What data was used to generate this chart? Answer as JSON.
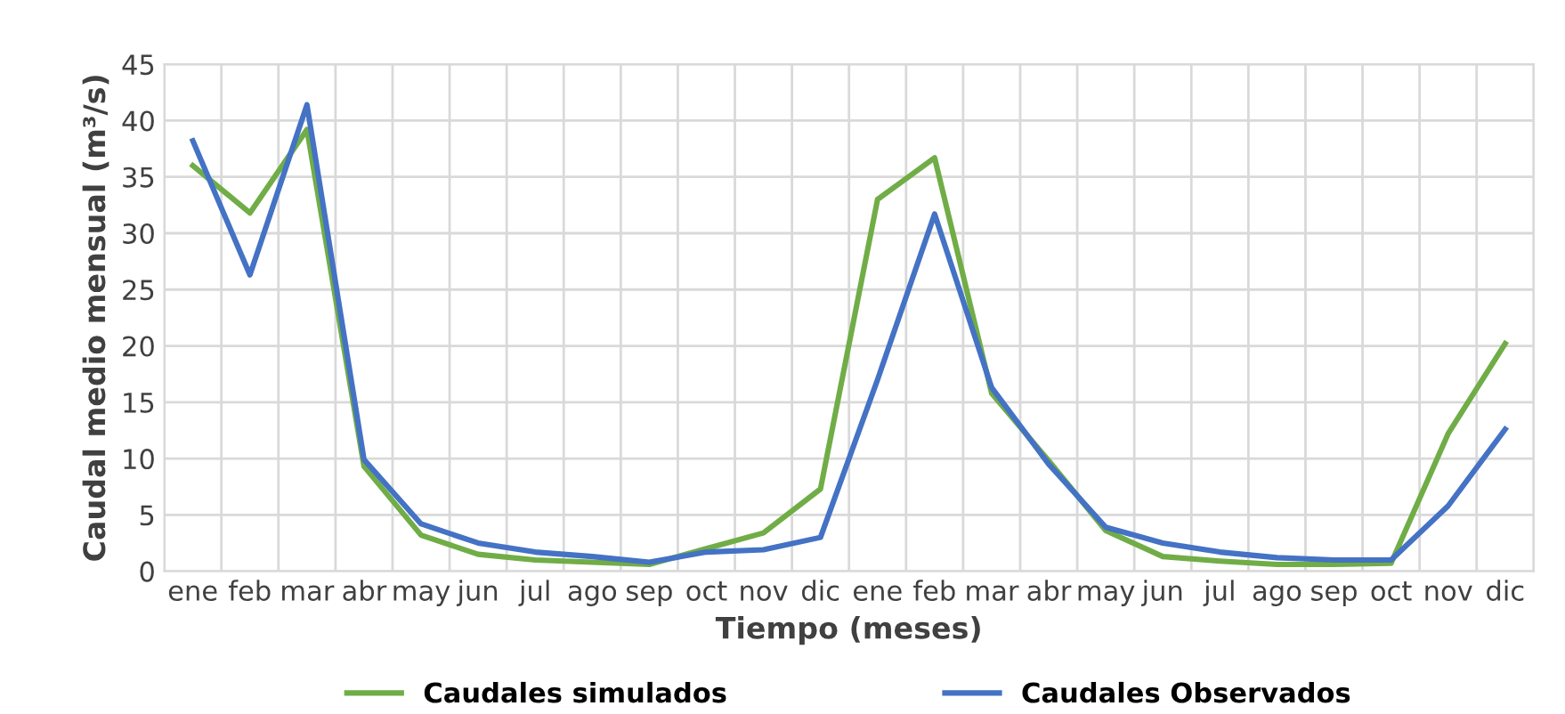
{
  "chart_data": {
    "type": "line",
    "xlabel": "Tiempo (meses)",
    "ylabel": "Caudal medio mensual (m³/s)",
    "categories": [
      "ene",
      "feb",
      "mar",
      "abr",
      "may",
      "jun",
      "jul",
      "ago",
      "sep",
      "oct",
      "nov",
      "dic",
      "ene",
      "feb",
      "mar",
      "abr",
      "may",
      "jun",
      "jul",
      "ago",
      "sep",
      "oct",
      "nov",
      "dic"
    ],
    "series": [
      {
        "name": "Caudales simulados",
        "color": "#70ad47",
        "values": [
          36,
          31.8,
          39.2,
          9.3,
          3.2,
          1.5,
          1.0,
          0.8,
          0.6,
          2.0,
          3.4,
          7.3,
          33,
          36.7,
          15.8,
          9.8,
          3.6,
          1.3,
          0.9,
          0.6,
          0.6,
          0.7,
          12.2,
          20.2
        ]
      },
      {
        "name": "Caudales Observados",
        "color": "#4472c4",
        "values": [
          38.2,
          26.3,
          41.4,
          9.9,
          4.2,
          2.5,
          1.7,
          1.3,
          0.8,
          1.7,
          1.9,
          3.0,
          17,
          31.7,
          16.3,
          9.5,
          3.9,
          2.5,
          1.7,
          1.2,
          1.0,
          1.0,
          5.8,
          12.6
        ]
      }
    ],
    "ylim": [
      0,
      45
    ],
    "yticks": [
      0,
      5,
      10,
      15,
      20,
      25,
      30,
      35,
      40,
      45
    ],
    "grid": true,
    "legend": "bottom",
    "marker": "none",
    "line_style": "solid"
  }
}
